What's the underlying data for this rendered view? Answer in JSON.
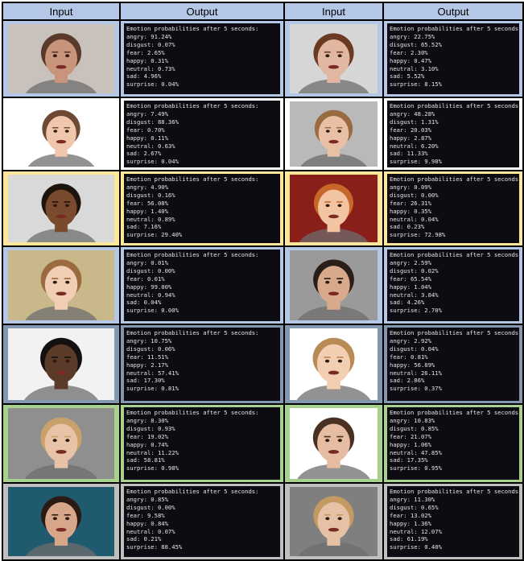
{
  "headers": [
    "Input",
    "Output",
    "Input",
    "Output"
  ],
  "row_colors": [
    "#b4c7e7",
    "#ffffff",
    "#ffe699",
    "#b4c7e7",
    "#8497b0",
    "#a9d18e",
    "#bfbfbf"
  ],
  "rows": [
    {
      "left": {
        "photo": "angry-bald-man-photo",
        "skin": "#c9957a",
        "hair": "#5a3a2a",
        "bg": "#c9c2bc",
        "title": "Emotion probabilities after 5 seconds:",
        "lines": [
          "angry: 91.24%",
          "disgust: 0.07%",
          "fear: 2.65%",
          "happy: 0.31%",
          "neutral: 0.73%",
          "sad: 4.96%",
          "surprise: 0.04%"
        ]
      },
      "right": {
        "photo": "angry-woman-photo",
        "skin": "#e2b7a2",
        "hair": "#6b3a22",
        "bg": "#d6d6d6",
        "title": "Emotion probabilities after 5 seconds:",
        "lines": [
          "angry: 22.75%",
          "disgust: 65.52%",
          "fear: 2.30%",
          "happy: 0.47%",
          "neutral: 3.10%",
          "sad: 5.52%",
          "surprise: 8.15%"
        ]
      }
    },
    {
      "left": {
        "photo": "disgusted-woman-photo",
        "skin": "#f0c7ad",
        "hair": "#6e4a34",
        "bg": "#ffffff",
        "title": "Emotion probabilities after 5 seconds:",
        "lines": [
          "angry: 7.49%",
          "disgust: 88.36%",
          "fear: 0.70%",
          "happy: 0.11%",
          "neutral: 0.63%",
          "sad: 2.67%",
          "surprise: 0.04%"
        ]
      },
      "right": {
        "photo": "screaming-boy-photo",
        "skin": "#e9c0a6",
        "hair": "#9a6a40",
        "bg": "#b9b9b9",
        "title": "Emotion probabilities after 5 seconds:",
        "lines": [
          "angry: 48.28%",
          "disgust: 1.31%",
          "fear: 20.03%",
          "happy: 2.87%",
          "neutral: 6.20%",
          "sad: 11.33%",
          "surprise: 9.98%"
        ]
      }
    },
    {
      "left": {
        "photo": "scared-man-photo",
        "skin": "#7a4a2e",
        "hair": "#1e140e",
        "bg": "#d9d9d9",
        "title": "Emotion probabilities after 5 seconds:",
        "lines": [
          "angry: 4.90%",
          "disgust: 0.16%",
          "fear: 56.08%",
          "happy: 1.40%",
          "neutral: 0.89%",
          "sad: 7.16%",
          "surprise: 29.40%"
        ]
      },
      "right": {
        "photo": "surprised-boy-photo",
        "skin": "#f2c4a2",
        "hair": "#c8672a",
        "bg": "#8a1f1a",
        "title": "Emotion probabilities after 5 seconds:",
        "lines": [
          "angry: 0.09%",
          "disgust: 0.00%",
          "fear: 26.31%",
          "happy: 0.35%",
          "neutral: 0.04%",
          "sad: 0.23%",
          "surprise: 72.98%"
        ]
      }
    },
    {
      "left": {
        "photo": "smiling-woman-photo",
        "skin": "#f0cdb3",
        "hair": "#9b6a3e",
        "bg": "#c8b88a",
        "title": "Emotion probabilities after 5 seconds:",
        "lines": [
          "angry: 0.01%",
          "disgust: 0.00%",
          "fear: 0.01%",
          "happy: 99.00%",
          "neutral: 0.94%",
          "sad: 0.04%",
          "surprise: 0.00%"
        ]
      },
      "right": {
        "photo": "frightened-man-photo",
        "skin": "#d9a98c",
        "hair": "#2a1e18",
        "bg": "#9a9a9a",
        "title": "Emotion probabilities after 5 seconds:",
        "lines": [
          "angry: 2.59%",
          "disgust: 0.02%",
          "fear: 65.54%",
          "happy: 1.04%",
          "neutral: 3.84%",
          "sad: 4.26%",
          "surprise: 2.70%"
        ]
      }
    },
    {
      "left": {
        "photo": "neutral-man-photo",
        "skin": "#5a3a28",
        "hair": "#141010",
        "bg": "#f2f2f2",
        "title": "Emotion probabilities after 5 seconds:",
        "lines": [
          "angry: 10.75%",
          "disgust: 0.06%",
          "fear: 11.51%",
          "happy: 2.17%",
          "neutral: 57.41%",
          "sad: 17.30%",
          "surprise: 0.81%"
        ]
      },
      "right": {
        "photo": "laughing-boy-photo",
        "skin": "#f3cfb2",
        "hair": "#b88a55",
        "bg": "#ffffff",
        "title": "Emotion probabilities after 5 seconds:",
        "lines": [
          "angry: 2.92%",
          "disgust: 0.04%",
          "fear: 0.81%",
          "happy: 56.89%",
          "neutral: 26.11%",
          "sad: 2.86%",
          "surprise: 0.37%"
        ]
      }
    },
    {
      "left": {
        "photo": "sad-boy-photo",
        "skin": "#e8c3a8",
        "hair": "#c9a16a",
        "bg": "#8f8f8f",
        "title": "Emotion probabilities after 5 seconds:",
        "lines": [
          "angry: 8.30%",
          "disgust: 0.93%",
          "fear: 19.02%",
          "happy: 0.74%",
          "neutral: 11.22%",
          "sad: 58.81%",
          "surprise: 0.98%"
        ]
      },
      "right": {
        "photo": "serious-man-photo",
        "skin": "#e6bda2",
        "hair": "#4a3022",
        "bg": "#ffffff",
        "title": "Emotion probabilities after 5 seconds:",
        "lines": [
          "angry: 10.83%",
          "disgust: 0.85%",
          "fear: 21.07%",
          "happy: 1.06%",
          "neutral: 47.85%",
          "sad: 17.35%",
          "surprise: 0.95%"
        ]
      }
    },
    {
      "left": {
        "photo": "shocked-man-photo",
        "skin": "#d8a78a",
        "hair": "#2a1c14",
        "bg": "#1f5a6e",
        "title": "Emotion probabilities after 5 seconds:",
        "lines": [
          "angry: 0.85%",
          "disgust: 0.00%",
          "fear: 9.58%",
          "happy: 0.84%",
          "neutral: 0.07%",
          "sad: 0.21%",
          "surprise: 88.45%"
        ]
      },
      "right": {
        "photo": "sad-child-photo",
        "skin": "#e7c1a5",
        "hair": "#c49a63",
        "bg": "#7f7f7f",
        "title": "Emotion probabilities after 5 seconds:",
        "lines": [
          "angry: 11.30%",
          "disgust: 0.65%",
          "fear: 13.02%",
          "happy: 1.36%",
          "neutral: 12.07%",
          "sad: 61.19%",
          "surprise: 0.40%"
        ]
      }
    }
  ]
}
